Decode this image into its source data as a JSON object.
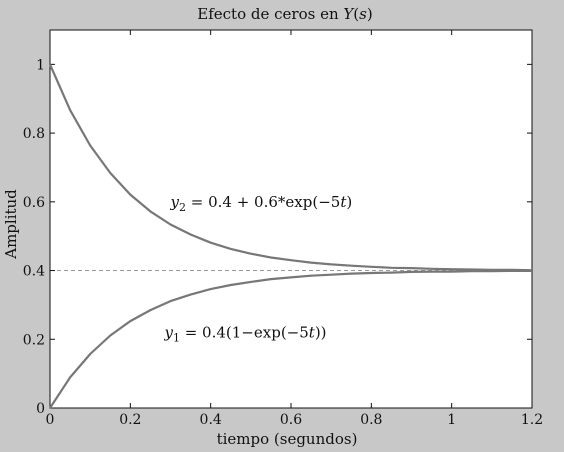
{
  "chart_data": {
    "type": "line",
    "title": {
      "pre": "Efecto de ceros en ",
      "var": "Y",
      "paren_open": "(",
      "arg": "s",
      "paren_close": ")"
    },
    "xlabel": "tiempo (segundos)",
    "ylabel": "Amplitud",
    "xlim": [
      0,
      1.2
    ],
    "ylim": [
      0,
      1.1
    ],
    "xticks": [
      0,
      0.2,
      0.4,
      0.6,
      0.8,
      1,
      1.2
    ],
    "xtick_labels": [
      "0",
      "0.2",
      "0.4",
      "0.6",
      "0.8",
      "1",
      "1.2"
    ],
    "yticks": [
      0,
      0.2,
      0.4,
      0.6,
      0.8,
      1
    ],
    "ytick_labels": [
      "0",
      "0.2",
      "0.4",
      "0.6",
      "0.8",
      "1"
    ],
    "grid": false,
    "series": [
      {
        "label": "y2",
        "formula": "0.4 + 0.6*exp(-5t)",
        "color": "#777777",
        "x": [
          0,
          0.05,
          0.1,
          0.15,
          0.2,
          0.25,
          0.3,
          0.35,
          0.4,
          0.45,
          0.5,
          0.55,
          0.6,
          0.65,
          0.7,
          0.75,
          0.8,
          0.85,
          0.9,
          0.95,
          1.0,
          1.05,
          1.1,
          1.15,
          1.2
        ],
        "y": [
          1.0,
          0.867,
          0.764,
          0.684,
          0.621,
          0.572,
          0.534,
          0.505,
          0.481,
          0.463,
          0.449,
          0.438,
          0.43,
          0.423,
          0.418,
          0.414,
          0.411,
          0.408,
          0.407,
          0.405,
          0.404,
          0.403,
          0.402,
          0.402,
          0.401
        ]
      },
      {
        "label": "y1",
        "formula": "0.4(1-exp(-5t))",
        "color": "#777777",
        "x": [
          0,
          0.05,
          0.1,
          0.15,
          0.2,
          0.25,
          0.3,
          0.35,
          0.4,
          0.45,
          0.5,
          0.55,
          0.6,
          0.65,
          0.7,
          0.75,
          0.8,
          0.85,
          0.9,
          0.95,
          1.0,
          1.05,
          1.1,
          1.15,
          1.2
        ],
        "y": [
          0.0,
          0.089,
          0.157,
          0.211,
          0.253,
          0.285,
          0.311,
          0.33,
          0.346,
          0.358,
          0.367,
          0.375,
          0.38,
          0.385,
          0.388,
          0.391,
          0.393,
          0.394,
          0.396,
          0.397,
          0.397,
          0.398,
          0.398,
          0.399,
          0.399
        ]
      }
    ],
    "reference_line": {
      "y": 0.4,
      "style": "dashed",
      "color": "#999999"
    },
    "annotations": [
      {
        "series": "y2",
        "var": "y",
        "sub": "2",
        "text": " = 0.4 + 0.6*exp(−5",
        "t": "t",
        "tail": ")",
        "at_x": 0.3,
        "at_y": 0.585
      },
      {
        "series": "y1",
        "var": "y",
        "sub": "1",
        "text": " = 0.4(1−exp(−5",
        "t": "t",
        "tail": "))",
        "at_x": 0.285,
        "at_y": 0.205
      }
    ]
  }
}
